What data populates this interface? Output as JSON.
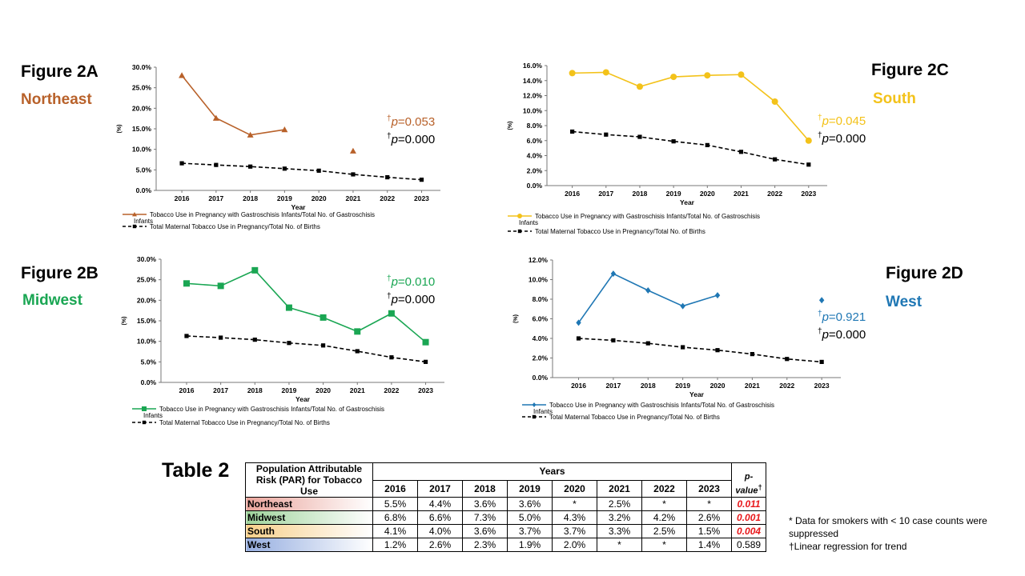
{
  "figures": [
    {
      "id": "A",
      "fig_label": "Figure 2A",
      "region": "Northeast",
      "color": "#b8612a",
      "marker": "triangle",
      "pvals": [
        {
          "symbol": "†",
          "p": "p",
          "text": "=0.053",
          "color": "#b8612a"
        },
        {
          "symbol": "†",
          "p": "p",
          "text": "=0.000",
          "color": "#000000"
        }
      ],
      "chart_data": {
        "type": "line",
        "x": [
          2016,
          2017,
          2018,
          2019,
          2020,
          2021,
          2022,
          2023
        ],
        "xlabel": "Year",
        "ylabel": "(%)",
        "ylim": [
          0,
          30
        ],
        "yticks": [
          0,
          5,
          10,
          15,
          20,
          25,
          30
        ],
        "ytick_labels": [
          "0.0%",
          "5.0%",
          "10.0%",
          "15.0%",
          "20.0%",
          "25.0%",
          "30.0%"
        ],
        "series": [
          {
            "name": "Tobacco Use in Pregnancy with Gastroschisis Infants/Total No. of Gastroschisis Infants",
            "values": [
              28.0,
              17.6,
              13.5,
              14.8,
              null,
              9.6,
              null,
              null
            ]
          },
          {
            "name": "Total Maternal Tobacco Use in Pregnancy/Total No. of Births",
            "values": [
              6.6,
              6.2,
              5.8,
              5.3,
              4.8,
              3.9,
              3.2,
              2.6
            ]
          }
        ],
        "legend_position": "bottom"
      }
    },
    {
      "id": "C",
      "fig_label": "Figure 2C",
      "region": "South",
      "color": "#f3c21a",
      "marker": "circle",
      "pvals": [
        {
          "symbol": "†",
          "p": "p",
          "text": "=0.045",
          "color": "#f3c21a"
        },
        {
          "symbol": "†",
          "p": "p",
          "text": "=0.000",
          "color": "#000000"
        }
      ],
      "chart_data": {
        "type": "line",
        "x": [
          2016,
          2017,
          2018,
          2019,
          2020,
          2021,
          2022,
          2023
        ],
        "xlabel": "Year",
        "ylabel": "(%)",
        "ylim": [
          0,
          16
        ],
        "yticks": [
          0,
          2,
          4,
          6,
          8,
          10,
          12,
          14,
          16
        ],
        "ytick_labels": [
          "0.0%",
          "2.0%",
          "4.0%",
          "6.0%",
          "8.0%",
          "10.0%",
          "12.0%",
          "14.0%",
          "16.0%"
        ],
        "series": [
          {
            "name": "Tobacco Use in Pregnancy with Gastroschisis Infants/Total No. of Gastroschisis Infants",
            "values": [
              15.0,
              15.1,
              13.2,
              14.5,
              14.7,
              14.8,
              11.2,
              6.0
            ]
          },
          {
            "name": "Total Maternal Tobacco Use in Pregnancy/Total No. of Births",
            "values": [
              7.2,
              6.8,
              6.5,
              5.9,
              5.4,
              4.5,
              3.5,
              2.8
            ]
          }
        ],
        "legend_position": "bottom"
      }
    },
    {
      "id": "B",
      "fig_label": "Figure 2B",
      "region": "Midwest",
      "color": "#1aa653",
      "marker": "square",
      "pvals": [
        {
          "symbol": "†",
          "p": "p",
          "text": "=0.010",
          "color": "#1aa653"
        },
        {
          "symbol": "†",
          "p": "p",
          "text": "=0.000",
          "color": "#000000"
        }
      ],
      "chart_data": {
        "type": "line",
        "x": [
          2016,
          2017,
          2018,
          2019,
          2020,
          2021,
          2022,
          2023
        ],
        "xlabel": "Year",
        "ylabel": "(%)",
        "ylim": [
          0,
          30
        ],
        "yticks": [
          0,
          5,
          10,
          15,
          20,
          25,
          30
        ],
        "ytick_labels": [
          "0.0%",
          "5.0%",
          "10.0%",
          "15.0%",
          "20.0%",
          "25.0%",
          "30.0%"
        ],
        "series": [
          {
            "name": "Tobacco Use in Pregnancy with Gastroschisis Infants/Total No. of Gastroschisis Infants",
            "values": [
              24.1,
              23.5,
              27.3,
              18.2,
              15.8,
              12.4,
              16.8,
              9.8
            ]
          },
          {
            "name": "Total Maternal Tobacco Use in Pregnancy/Total No. of Births",
            "values": [
              11.3,
              10.9,
              10.4,
              9.6,
              9.0,
              7.6,
              6.1,
              5.0
            ]
          }
        ],
        "legend_position": "bottom"
      }
    },
    {
      "id": "D",
      "fig_label": "Figure 2D",
      "region": "West",
      "color": "#1f77b4",
      "marker": "diamond",
      "pvals": [
        {
          "symbol": "†",
          "p": "p",
          "text": "=0.921",
          "color": "#1f77b4"
        },
        {
          "symbol": "†",
          "p": "p",
          "text": "=0.000",
          "color": "#000000"
        }
      ],
      "chart_data": {
        "type": "line",
        "x": [
          2016,
          2017,
          2018,
          2019,
          2020,
          2021,
          2022,
          2023
        ],
        "xlabel": "Year",
        "ylabel": "(%)",
        "ylim": [
          0,
          12
        ],
        "yticks": [
          0,
          2,
          4,
          6,
          8,
          10,
          12
        ],
        "ytick_labels": [
          "0.0%",
          "2.0%",
          "4.0%",
          "6.0%",
          "8.0%",
          "10.0%",
          "12.0%"
        ],
        "series": [
          {
            "name": "Tobacco Use in Pregnancy with Gastroschisis Infants/Total No. of Gastroschisis Infants",
            "values": [
              5.6,
              10.6,
              8.9,
              7.3,
              8.4,
              null,
              null,
              7.9
            ]
          },
          {
            "name": "Total Maternal Tobacco Use in Pregnancy/Total No. of Births",
            "values": [
              4.0,
              3.8,
              3.5,
              3.1,
              2.8,
              2.4,
              1.9,
              1.6
            ]
          }
        ],
        "legend_position": "bottom"
      }
    }
  ],
  "table": {
    "title": "Table 2",
    "row_header": "Population Attributable Risk (PAR) for Tobacco Use",
    "years_header": "Years",
    "pvalue_header": "p-value",
    "pvalue_symbol": "†",
    "years": [
      "2016",
      "2017",
      "2018",
      "2019",
      "2020",
      "2021",
      "2022",
      "2023"
    ],
    "rows": [
      {
        "region": "Northeast",
        "color": "#e9a49b",
        "values": [
          "5.5%",
          "4.4%",
          "3.6%",
          "3.6%",
          "*",
          "2.5%",
          "*",
          "*"
        ],
        "p": "0.011",
        "significant": true
      },
      {
        "region": "Midwest",
        "color": "#9fd39b",
        "values": [
          "6.8%",
          "6.6%",
          "7.3%",
          "5.0%",
          "4.3%",
          "3.2%",
          "4.2%",
          "2.6%"
        ],
        "p": "0.001",
        "significant": true
      },
      {
        "region": "South",
        "color": "#f7cf8a",
        "values": [
          "4.1%",
          "4.0%",
          "3.6%",
          "3.7%",
          "3.7%",
          "3.3%",
          "2.5%",
          "1.5%"
        ],
        "p": "0.004",
        "significant": true
      },
      {
        "region": "West",
        "color": "#96aee0",
        "values": [
          "1.2%",
          "2.6%",
          "2.3%",
          "1.9%",
          "2.0%",
          "*",
          "*",
          "1.4%"
        ],
        "p": "0.589",
        "significant": false
      }
    ]
  },
  "notes": [
    "* Data for smokers with < 10 case counts were suppressed",
    "†Linear regression for trend"
  ]
}
